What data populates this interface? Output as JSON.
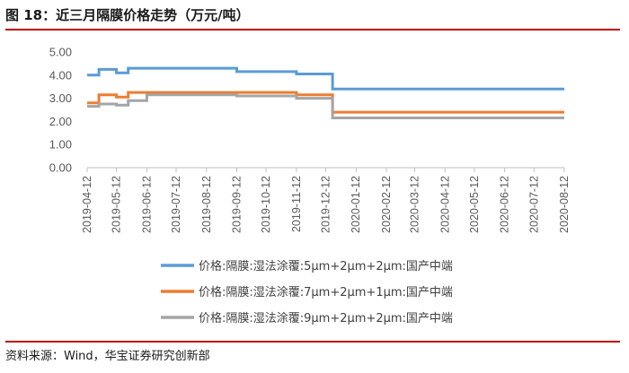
{
  "header": {
    "title": "图 18：近三月隔膜价格走势（万元/吨）"
  },
  "footer": {
    "source": "资料来源：Wind，华宝证券研究创新部"
  },
  "chart_data": {
    "type": "line",
    "ylim": [
      0,
      5
    ],
    "yticks": [
      "5.00",
      "4.00",
      "3.00",
      "2.00",
      "1.00",
      "0.00"
    ],
    "ytick_values": [
      5,
      4,
      3,
      2,
      1,
      0
    ],
    "xticks": [
      "2019-04-12",
      "2019-05-12",
      "2019-06-12",
      "2019-07-12",
      "2019-08-12",
      "2019-09-12",
      "2019-10-12",
      "2019-11-12",
      "2019-12-12",
      "2020-01-12",
      "2020-02-12",
      "2020-03-12",
      "2020-04-12",
      "2020-05-12",
      "2020-06-12",
      "2020-07-12",
      "2020-08-12"
    ],
    "grid": false,
    "legend_position": "bottom",
    "series": [
      {
        "name": "价格:隔膜:湿法涂覆:5μm+2μm+2μm:国产中端",
        "color": "#5b9bd5",
        "points": [
          [
            "2019-04-12",
            4.0
          ],
          [
            "2019-04-24",
            4.0
          ],
          [
            "2019-04-24",
            4.25
          ],
          [
            "2019-05-12",
            4.25
          ],
          [
            "2019-05-12",
            4.1
          ],
          [
            "2019-05-24",
            4.1
          ],
          [
            "2019-05-24",
            4.3
          ],
          [
            "2019-09-12",
            4.3
          ],
          [
            "2019-09-12",
            4.15
          ],
          [
            "2019-11-12",
            4.15
          ],
          [
            "2019-11-12",
            4.05
          ],
          [
            "2019-12-19",
            4.05
          ],
          [
            "2019-12-19",
            3.4
          ],
          [
            "2020-08-12",
            3.4
          ]
        ]
      },
      {
        "name": "价格:隔膜:湿法涂覆:7μm+2μm+1μm:国产中端",
        "color": "#ed7d31",
        "points": [
          [
            "2019-04-12",
            2.8
          ],
          [
            "2019-04-24",
            2.8
          ],
          [
            "2019-04-24",
            3.15
          ],
          [
            "2019-05-12",
            3.15
          ],
          [
            "2019-05-12",
            3.05
          ],
          [
            "2019-05-24",
            3.05
          ],
          [
            "2019-05-24",
            3.25
          ],
          [
            "2019-11-12",
            3.25
          ],
          [
            "2019-11-12",
            3.15
          ],
          [
            "2019-12-19",
            3.15
          ],
          [
            "2019-12-19",
            2.4
          ],
          [
            "2020-08-12",
            2.4
          ]
        ]
      },
      {
        "name": "价格:隔膜:湿法涂覆:9μm+2μm+2μm:国产中端",
        "color": "#a5a5a5",
        "points": [
          [
            "2019-04-12",
            2.65
          ],
          [
            "2019-04-24",
            2.65
          ],
          [
            "2019-04-24",
            2.75
          ],
          [
            "2019-05-12",
            2.75
          ],
          [
            "2019-05-12",
            2.7
          ],
          [
            "2019-05-24",
            2.7
          ],
          [
            "2019-05-24",
            2.9
          ],
          [
            "2019-06-12",
            2.9
          ],
          [
            "2019-06-12",
            3.15
          ],
          [
            "2019-09-12",
            3.15
          ],
          [
            "2019-09-12",
            3.1
          ],
          [
            "2019-11-12",
            3.1
          ],
          [
            "2019-11-12",
            3.0
          ],
          [
            "2019-12-19",
            3.0
          ],
          [
            "2019-12-19",
            2.15
          ],
          [
            "2020-08-12",
            2.15
          ]
        ]
      }
    ]
  }
}
